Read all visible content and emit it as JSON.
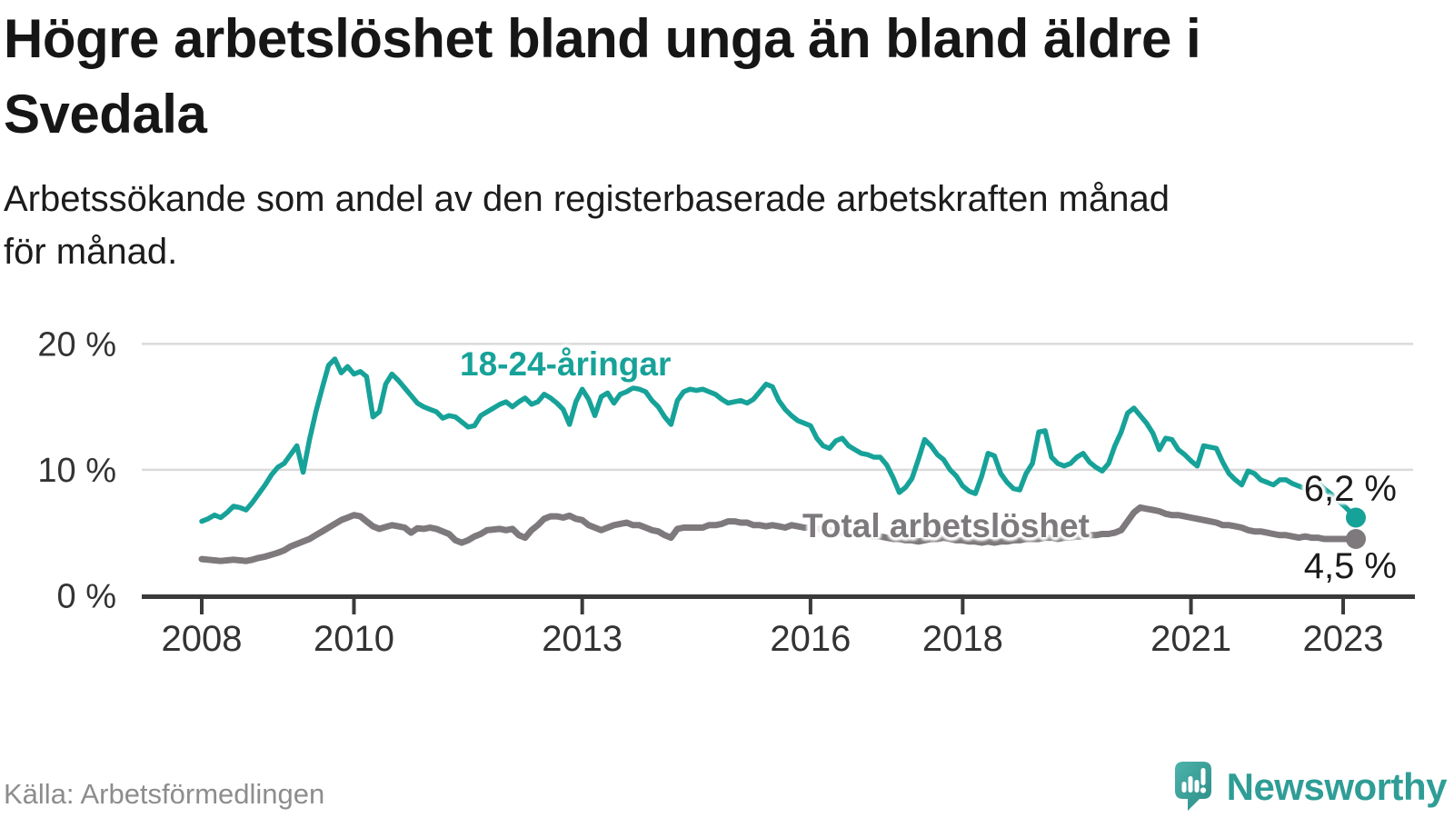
{
  "header": {
    "title": "Högre arbetslöshet bland unga än bland äldre i\nSvedala",
    "subtitle": "Arbetssökande som andel av den registerbaserade arbetskraften månad\nför månad."
  },
  "footer": {
    "source": "Källa: Arbetsförmedlingen",
    "brand": "Newsworthy",
    "brand_color": "#2f9d96"
  },
  "chart_data": {
    "type": "line",
    "title": "Högre arbetslöshet bland unga än bland äldre i Svedala",
    "xlabel": "",
    "ylabel": "Arbetssökande som andel av den registerbaserade arbetskraften",
    "x_start": "2008-01",
    "x_end": "2023-03",
    "x_frequency": "monthly",
    "ylim": [
      0,
      20
    ],
    "grid": "horizontal",
    "y_ticks": [
      {
        "value": 0,
        "label": "0 %"
      },
      {
        "value": 10,
        "label": "10 %"
      },
      {
        "value": 20,
        "label": "20 %"
      }
    ],
    "x_ticks": [
      {
        "year": 2008,
        "label": "2008"
      },
      {
        "year": 2010,
        "label": "2010"
      },
      {
        "year": 2013,
        "label": "2013"
      },
      {
        "year": 2016,
        "label": "2016"
      },
      {
        "year": 2018,
        "label": "2018"
      },
      {
        "year": 2021,
        "label": "2021"
      },
      {
        "year": 2023,
        "label": "2023"
      }
    ],
    "series": [
      {
        "name": "18-24-åringar",
        "color": "#17a299",
        "end_label": "6,2 %",
        "end_value": 6.2,
        "values": [
          5.9,
          6.1,
          6.4,
          6.2,
          6.6,
          7.1,
          7.0,
          6.8,
          7.4,
          8.1,
          8.8,
          9.6,
          10.2,
          10.5,
          11.2,
          11.9,
          9.8,
          12.4,
          14.6,
          16.5,
          18.3,
          18.8,
          17.7,
          18.2,
          17.6,
          17.8,
          17.4,
          14.2,
          14.6,
          16.8,
          17.6,
          17.1,
          16.5,
          15.9,
          15.3,
          15.0,
          14.8,
          14.6,
          14.1,
          14.3,
          14.2,
          13.8,
          13.4,
          13.5,
          14.3,
          14.6,
          14.9,
          15.2,
          15.4,
          15.0,
          15.4,
          15.7,
          15.2,
          15.4,
          16.0,
          15.7,
          15.3,
          14.8,
          13.6,
          15.4,
          16.4,
          15.6,
          14.3,
          15.8,
          16.1,
          15.3,
          16.0,
          16.2,
          16.5,
          16.4,
          16.2,
          15.5,
          15.0,
          14.2,
          13.6,
          15.5,
          16.2,
          16.4,
          16.3,
          16.4,
          16.2,
          16.0,
          15.6,
          15.3,
          15.4,
          15.5,
          15.3,
          15.6,
          16.2,
          16.8,
          16.6,
          15.5,
          14.8,
          14.3,
          13.9,
          13.7,
          13.5,
          12.5,
          11.9,
          11.7,
          12.3,
          12.5,
          11.9,
          11.6,
          11.3,
          11.2,
          11.0,
          11.0,
          10.4,
          9.4,
          8.2,
          8.6,
          9.3,
          10.8,
          12.4,
          11.9,
          11.2,
          10.8,
          10.0,
          9.5,
          8.7,
          8.3,
          8.1,
          9.5,
          11.3,
          11.1,
          9.7,
          9.0,
          8.5,
          8.4,
          9.7,
          10.5,
          13.0,
          13.1,
          11.0,
          10.5,
          10.3,
          10.5,
          11.0,
          11.3,
          10.6,
          10.2,
          9.9,
          10.5,
          11.9,
          13.0,
          14.5,
          14.9,
          14.3,
          13.7,
          12.9,
          11.6,
          12.5,
          12.4,
          11.6,
          11.2,
          10.7,
          10.3,
          11.9,
          11.8,
          11.7,
          10.6,
          9.7,
          9.2,
          8.8,
          9.9,
          9.7,
          9.2,
          9.0,
          8.8,
          9.2,
          9.2,
          8.9,
          8.7,
          8.5,
          8.9,
          9.0,
          8.5,
          8.1,
          7.6,
          7.2,
          6.7,
          6.2
        ]
      },
      {
        "name": "Total arbetslöshet",
        "color": "#7d797c",
        "end_label": "4,5 %",
        "end_value": 4.5,
        "values": [
          2.9,
          2.85,
          2.8,
          2.75,
          2.8,
          2.85,
          2.8,
          2.75,
          2.85,
          3.0,
          3.1,
          3.25,
          3.4,
          3.6,
          3.9,
          4.1,
          4.3,
          4.5,
          4.8,
          5.1,
          5.4,
          5.7,
          6.0,
          6.2,
          6.4,
          6.3,
          5.9,
          5.5,
          5.3,
          5.45,
          5.6,
          5.5,
          5.4,
          5.0,
          5.35,
          5.3,
          5.4,
          5.3,
          5.1,
          4.9,
          4.4,
          4.2,
          4.4,
          4.7,
          4.9,
          5.2,
          5.25,
          5.3,
          5.2,
          5.3,
          4.8,
          4.6,
          5.2,
          5.6,
          6.1,
          6.3,
          6.3,
          6.2,
          6.35,
          6.1,
          6.0,
          5.6,
          5.4,
          5.2,
          5.4,
          5.6,
          5.7,
          5.8,
          5.6,
          5.6,
          5.4,
          5.2,
          5.1,
          4.8,
          4.6,
          5.3,
          5.4,
          5.4,
          5.4,
          5.4,
          5.6,
          5.6,
          5.7,
          5.9,
          5.9,
          5.8,
          5.8,
          5.6,
          5.6,
          5.5,
          5.6,
          5.5,
          5.4,
          5.6,
          5.5,
          5.4,
          5.4,
          5.3,
          5.3,
          5.2,
          5.1,
          5.0,
          5.0,
          4.9,
          4.9,
          4.8,
          4.7,
          4.7,
          4.6,
          4.5,
          4.5,
          4.4,
          4.4,
          4.3,
          4.4,
          4.5,
          4.5,
          4.6,
          4.5,
          4.4,
          4.4,
          4.3,
          4.3,
          4.2,
          4.3,
          4.2,
          4.3,
          4.3,
          4.4,
          4.4,
          4.5,
          4.5,
          4.5,
          4.6,
          4.6,
          4.5,
          4.6,
          4.6,
          4.7,
          4.7,
          4.8,
          4.8,
          4.9,
          4.9,
          5.0,
          5.2,
          5.9,
          6.6,
          7.0,
          6.9,
          6.8,
          6.7,
          6.5,
          6.4,
          6.4,
          6.3,
          6.2,
          6.1,
          6.0,
          5.9,
          5.8,
          5.6,
          5.6,
          5.5,
          5.4,
          5.2,
          5.1,
          5.1,
          5.0,
          4.9,
          4.8,
          4.8,
          4.7,
          4.6,
          4.7,
          4.6,
          4.6,
          4.5,
          4.5,
          4.5,
          4.5,
          4.5,
          4.5
        ]
      }
    ],
    "legend_position": "inline-labels"
  }
}
